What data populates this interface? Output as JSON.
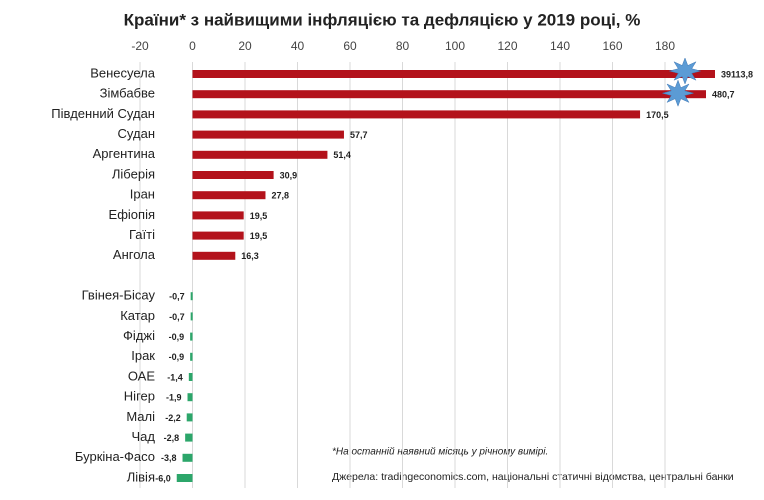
{
  "chart_data": {
    "type": "bar",
    "orientation": "horizontal",
    "title": "Країни* з найвищими інфляцією та дефляцією у 2019 році, %",
    "categories": [
      "Венесуела",
      "Зімбабве",
      "Південний Судан",
      "Судан",
      "Аргентина",
      "Ліберія",
      "Іран",
      "Ефіопія",
      "Гаїті",
      "Ангола",
      null,
      "Гвінея-Бісау",
      "Катар",
      "Фіджі",
      "Ірак",
      "ОАЕ",
      "Нігер",
      "Малі",
      "Чад",
      "Буркіна-Фасо",
      "Лівія"
    ],
    "values": [
      39113.8,
      480.7,
      170.5,
      57.7,
      51.4,
      30.9,
      27.8,
      19.5,
      19.5,
      16.3,
      null,
      -0.7,
      -0.7,
      -0.9,
      -0.9,
      -1.4,
      -1.9,
      -2.2,
      -2.8,
      -3.8,
      -6.0
    ],
    "value_labels": [
      "39113,8",
      "480,7",
      "170,5",
      "57,7",
      "51,4",
      "30,9",
      "27,8",
      "19,5",
      "19,5",
      "16,3",
      null,
      "-0,7",
      "-0,7",
      "-0,9",
      "-0,9",
      "-1,4",
      "-1,9",
      "-2,2",
      "-2,8",
      "-3,8",
      "-6,0"
    ],
    "positive_color": "#b3121b",
    "negative_color": "#2ca66a",
    "break_color": "#5b9bd5",
    "broken_bars": true,
    "xlim": [
      -20,
      180
    ],
    "xticks": [
      -20,
      0,
      20,
      40,
      60,
      80,
      100,
      120,
      140,
      160,
      180
    ],
    "grid": true,
    "footnote": "*На останній наявний місяць у річному вимірі.",
    "source": "Джерела: tradingeconomics.com, національні статичні відомства, центральні банки"
  }
}
